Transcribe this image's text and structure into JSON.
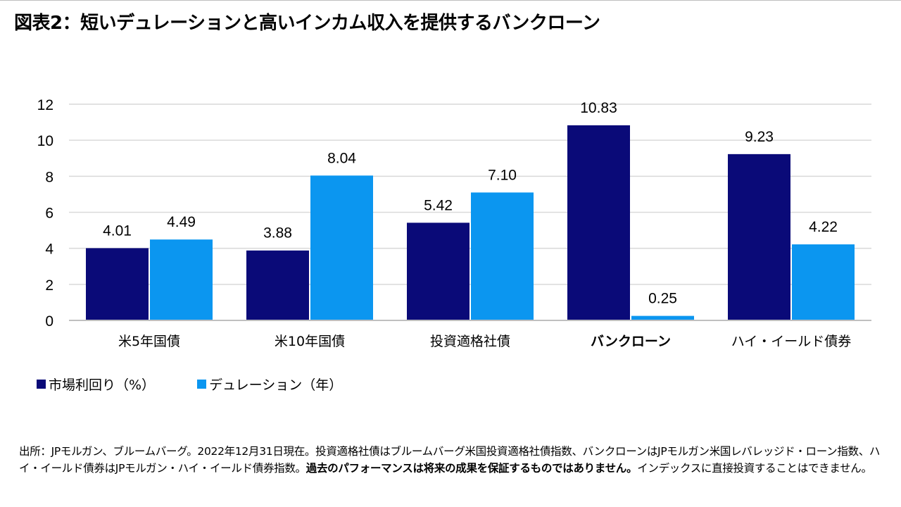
{
  "title": "図表2：短いデュレーションと高いインカム収入を提供するバンクローン",
  "colors": {
    "yield": "#0a0a78",
    "duration": "#0b96f0",
    "grid": "#d9d9d9",
    "axis": "#bfbfbf"
  },
  "chart_data": {
    "type": "bar",
    "categories": [
      "米5年国債",
      "米10年国債",
      "投資適格社債",
      "バンクローン",
      "ハイ・イールド債券"
    ],
    "bold_category": "バンクローン",
    "series": [
      {
        "name": "市場利回り（%）",
        "values": [
          4.01,
          3.88,
          5.42,
          10.83,
          9.23
        ],
        "labels": [
          "4.01",
          "3.88",
          "5.42",
          "10.83",
          "9.23"
        ]
      },
      {
        "name": "デュレーション（年）",
        "values": [
          4.49,
          8.04,
          7.1,
          0.25,
          4.22
        ],
        "labels": [
          "4.49",
          "8.04",
          "7.10",
          "0.25",
          "4.22"
        ]
      }
    ],
    "ylim": [
      0,
      12
    ],
    "yticks": [
      0,
      2,
      4,
      6,
      8,
      10,
      12
    ],
    "grid": true,
    "legend": "bottom-left"
  },
  "footnote": {
    "part1": "出所：JPモルガン、ブルームバーグ。2022年12月31日現在。投資適格社債はブルームバーグ米国投資適格社債指数、バンクローンはJPモルガン米国レバレッジド・ローン指数、ハイ・イールド債券はJPモルガン・ハイ・イールド債券指数。",
    "emphasis": "過去のパフォーマンスは将来の成果を保証するものではありません。",
    "part2": "インデックスに直接投資することはできません。"
  }
}
